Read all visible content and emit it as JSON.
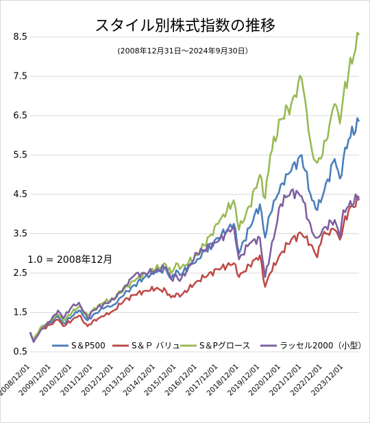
{
  "chart_data": {
    "type": "line",
    "title": "スタイル別株式指数の推移",
    "subtitle": "(2008年12月31日～2024年9月30日）",
    "annotation": "1.0 = 2008年12月",
    "xlabel": "",
    "ylabel": "",
    "ylim": [
      0.5,
      8.5
    ],
    "xlim": [
      "2008-12",
      "2024-09"
    ],
    "yticks": [
      "0.5",
      "1.5",
      "2.5",
      "3.5",
      "4.5",
      "5.5",
      "6.5",
      "7.5",
      "8.5"
    ],
    "xtick_labels": [
      "2008/12/01",
      "2009/12/01",
      "2010/12/01",
      "2011/12/01",
      "2012/12/01",
      "2013/12/01",
      "2014/12/01",
      "2015/12/01",
      "2016/12/01",
      "2017/12/01",
      "2018/12/01",
      "2019/12/01",
      "2020/12/01",
      "2021/12/01",
      "2022/12/01",
      "2023/12/01"
    ],
    "grid": "horizontal",
    "legend_position": "bottom",
    "series": [
      {
        "name": "S＆P500",
        "color": "#4a7ebb",
        "points": [
          [
            "2008-12",
            1.0
          ],
          [
            "2009-02",
            0.78
          ],
          [
            "2009-06",
            1.1
          ],
          [
            "2009-12",
            1.25
          ],
          [
            "2010-04",
            1.4
          ],
          [
            "2010-07",
            1.22
          ],
          [
            "2010-12",
            1.4
          ],
          [
            "2011-04",
            1.55
          ],
          [
            "2011-09",
            1.3
          ],
          [
            "2011-12",
            1.43
          ],
          [
            "2012-06",
            1.6
          ],
          [
            "2012-12",
            1.7
          ],
          [
            "2013-06",
            1.95
          ],
          [
            "2013-12",
            2.2
          ],
          [
            "2014-06",
            2.4
          ],
          [
            "2014-12",
            2.53
          ],
          [
            "2015-06",
            2.6
          ],
          [
            "2015-09",
            2.35
          ],
          [
            "2015-12",
            2.57
          ],
          [
            "2016-02",
            2.45
          ],
          [
            "2016-12",
            2.85
          ],
          [
            "2017-12",
            3.4
          ],
          [
            "2018-09",
            3.75
          ],
          [
            "2018-12",
            3.0
          ],
          [
            "2019-06",
            3.65
          ],
          [
            "2019-12",
            4.25
          ],
          [
            "2020-03",
            3.4
          ],
          [
            "2020-06",
            4.0
          ],
          [
            "2020-12",
            4.75
          ],
          [
            "2021-06",
            5.1
          ],
          [
            "2021-12",
            5.5
          ],
          [
            "2022-06",
            4.35
          ],
          [
            "2022-09",
            4.1
          ],
          [
            "2022-12",
            4.45
          ],
          [
            "2023-07",
            5.4
          ],
          [
            "2023-10",
            4.9
          ],
          [
            "2023-12",
            5.4
          ],
          [
            "2024-03",
            5.9
          ],
          [
            "2024-09",
            6.35
          ]
        ]
      },
      {
        "name": "S＆Ｐ バリュー",
        "color": "#be4b48",
        "points": [
          [
            "2008-12",
            1.0
          ],
          [
            "2009-02",
            0.8
          ],
          [
            "2009-06",
            1.05
          ],
          [
            "2009-12",
            1.2
          ],
          [
            "2010-04",
            1.32
          ],
          [
            "2010-07",
            1.15
          ],
          [
            "2010-12",
            1.3
          ],
          [
            "2011-04",
            1.42
          ],
          [
            "2011-09",
            1.15
          ],
          [
            "2011-12",
            1.28
          ],
          [
            "2012-06",
            1.4
          ],
          [
            "2012-12",
            1.55
          ],
          [
            "2013-06",
            1.8
          ],
          [
            "2013-12",
            1.95
          ],
          [
            "2014-06",
            2.05
          ],
          [
            "2014-12",
            2.1
          ],
          [
            "2015-06",
            2.05
          ],
          [
            "2015-09",
            1.88
          ],
          [
            "2015-12",
            1.98
          ],
          [
            "2016-02",
            1.9
          ],
          [
            "2016-12",
            2.3
          ],
          [
            "2017-12",
            2.6
          ],
          [
            "2018-09",
            2.75
          ],
          [
            "2018-12",
            2.4
          ],
          [
            "2019-06",
            2.7
          ],
          [
            "2019-12",
            2.95
          ],
          [
            "2020-03",
            2.15
          ],
          [
            "2020-06",
            2.5
          ],
          [
            "2020-12",
            3.0
          ],
          [
            "2021-06",
            3.35
          ],
          [
            "2021-12",
            3.5
          ],
          [
            "2022-06",
            3.2
          ],
          [
            "2022-09",
            2.9
          ],
          [
            "2022-12",
            3.45
          ],
          [
            "2023-07",
            3.6
          ],
          [
            "2023-10",
            3.35
          ],
          [
            "2023-12",
            3.7
          ],
          [
            "2024-03",
            4.1
          ],
          [
            "2024-09",
            4.35
          ]
        ]
      },
      {
        "name": "S＆Pグロース",
        "color": "#98b954",
        "points": [
          [
            "2008-12",
            1.0
          ],
          [
            "2009-02",
            0.8
          ],
          [
            "2009-06",
            1.12
          ],
          [
            "2009-12",
            1.28
          ],
          [
            "2010-04",
            1.45
          ],
          [
            "2010-07",
            1.28
          ],
          [
            "2010-12",
            1.5
          ],
          [
            "2011-04",
            1.65
          ],
          [
            "2011-09",
            1.42
          ],
          [
            "2011-12",
            1.56
          ],
          [
            "2012-06",
            1.75
          ],
          [
            "2012-12",
            1.85
          ],
          [
            "2013-06",
            2.1
          ],
          [
            "2013-12",
            2.3
          ],
          [
            "2014-06",
            2.5
          ],
          [
            "2014-12",
            2.6
          ],
          [
            "2015-06",
            2.72
          ],
          [
            "2015-09",
            2.5
          ],
          [
            "2015-12",
            2.75
          ],
          [
            "2016-02",
            2.6
          ],
          [
            "2016-12",
            2.95
          ],
          [
            "2017-12",
            3.75
          ],
          [
            "2018-09",
            4.35
          ],
          [
            "2018-12",
            3.6
          ],
          [
            "2019-06",
            4.2
          ],
          [
            "2019-12",
            5.0
          ],
          [
            "2020-03",
            4.4
          ],
          [
            "2020-06",
            5.5
          ],
          [
            "2020-12",
            6.4
          ],
          [
            "2021-06",
            6.8
          ],
          [
            "2021-12",
            7.45
          ],
          [
            "2022-06",
            5.6
          ],
          [
            "2022-09",
            5.3
          ],
          [
            "2022-12",
            5.5
          ],
          [
            "2023-07",
            6.8
          ],
          [
            "2023-10",
            6.3
          ],
          [
            "2023-12",
            7.0
          ],
          [
            "2024-03",
            7.6
          ],
          [
            "2024-09",
            8.55
          ]
        ]
      },
      {
        "name": "ラッセル2000（小型）",
        "color": "#7d60a0",
        "points": [
          [
            "2008-12",
            1.0
          ],
          [
            "2009-02",
            0.75
          ],
          [
            "2009-06",
            1.05
          ],
          [
            "2009-12",
            1.3
          ],
          [
            "2010-04",
            1.55
          ],
          [
            "2010-07",
            1.35
          ],
          [
            "2010-12",
            1.65
          ],
          [
            "2011-04",
            1.75
          ],
          [
            "2011-09",
            1.35
          ],
          [
            "2011-12",
            1.55
          ],
          [
            "2012-06",
            1.7
          ],
          [
            "2012-12",
            1.82
          ],
          [
            "2013-06",
            2.15
          ],
          [
            "2013-12",
            2.45
          ],
          [
            "2014-06",
            2.5
          ],
          [
            "2014-12",
            2.55
          ],
          [
            "2015-06",
            2.65
          ],
          [
            "2015-09",
            2.35
          ],
          [
            "2015-12",
            2.45
          ],
          [
            "2016-02",
            2.3
          ],
          [
            "2016-12",
            3.0
          ],
          [
            "2017-12",
            3.3
          ],
          [
            "2018-09",
            3.7
          ],
          [
            "2018-12",
            2.85
          ],
          [
            "2019-06",
            3.25
          ],
          [
            "2019-12",
            3.4
          ],
          [
            "2020-03",
            2.4
          ],
          [
            "2020-06",
            3.0
          ],
          [
            "2020-12",
            4.25
          ],
          [
            "2021-06",
            4.6
          ],
          [
            "2021-12",
            4.45
          ],
          [
            "2022-06",
            3.55
          ],
          [
            "2022-09",
            3.4
          ],
          [
            "2022-12",
            3.6
          ],
          [
            "2023-07",
            3.85
          ],
          [
            "2023-10",
            3.4
          ],
          [
            "2023-12",
            4.1
          ],
          [
            "2024-03",
            4.2
          ],
          [
            "2024-09",
            4.45
          ]
        ]
      }
    ]
  }
}
